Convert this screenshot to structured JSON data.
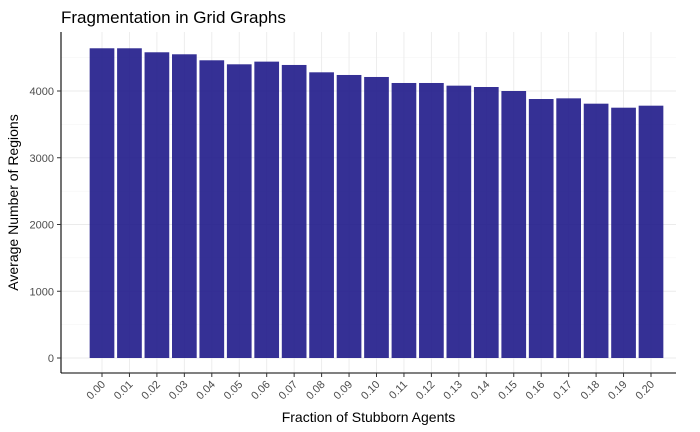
{
  "chart_data": {
    "type": "bar",
    "title": "Fragmentation in Grid Graphs",
    "xlabel": "Fraction of Stubborn Agents",
    "ylabel": "Average Number of Regions",
    "categories": [
      "0.00",
      "0.01",
      "0.02",
      "0.03",
      "0.04",
      "0.05",
      "0.06",
      "0.07",
      "0.08",
      "0.09",
      "0.10",
      "0.11",
      "0.12",
      "0.13",
      "0.14",
      "0.15",
      "0.16",
      "0.17",
      "0.18",
      "0.19",
      "0.20"
    ],
    "values": [
      4640,
      4640,
      4580,
      4550,
      4460,
      4400,
      4440,
      4390,
      4280,
      4240,
      4210,
      4120,
      4120,
      4080,
      4060,
      4000,
      3880,
      3890,
      3810,
      3750,
      3780
    ],
    "ylim": [
      0,
      4850
    ],
    "yticks": [
      0,
      1000,
      2000,
      3000,
      4000
    ],
    "grid": true,
    "bar_color": "#1f1a8a"
  }
}
